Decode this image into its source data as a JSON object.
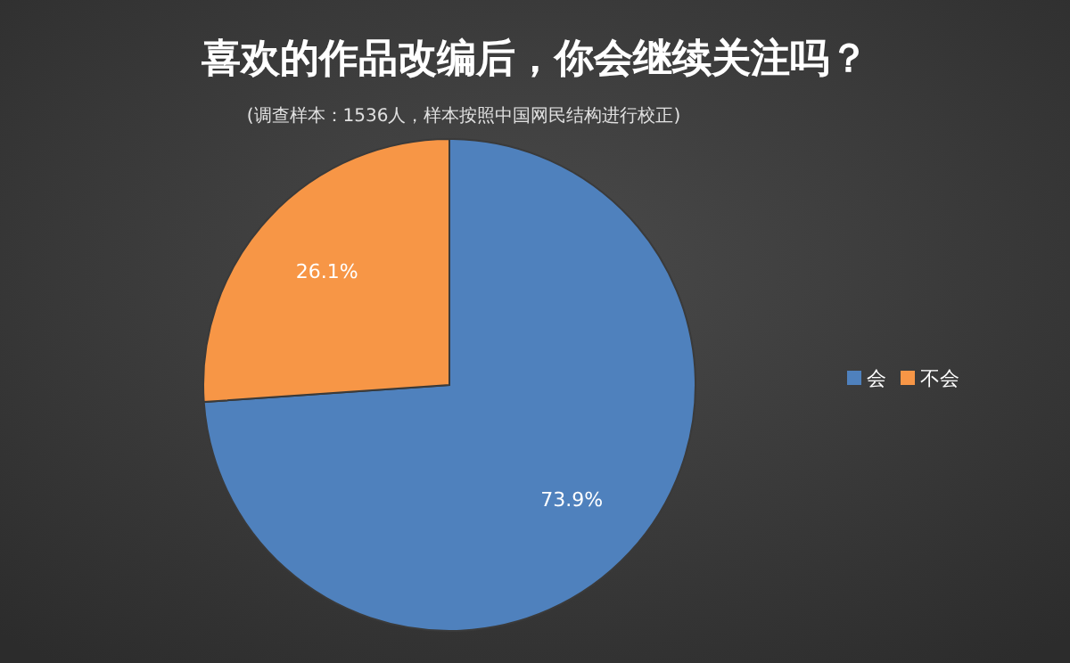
{
  "chart_data": {
    "type": "pie",
    "title": "喜欢的作品改编后，你会继续关注吗？",
    "subtitle": "(调查样本：1536人，样本按照中国网民结构进行校正)",
    "categories": [
      "会",
      "不会"
    ],
    "values": [
      73.9,
      26.1
    ],
    "colors": [
      "#4f81bd",
      "#f79646"
    ],
    "value_labels": [
      "73.9%",
      "26.1%"
    ],
    "legend": "right"
  }
}
